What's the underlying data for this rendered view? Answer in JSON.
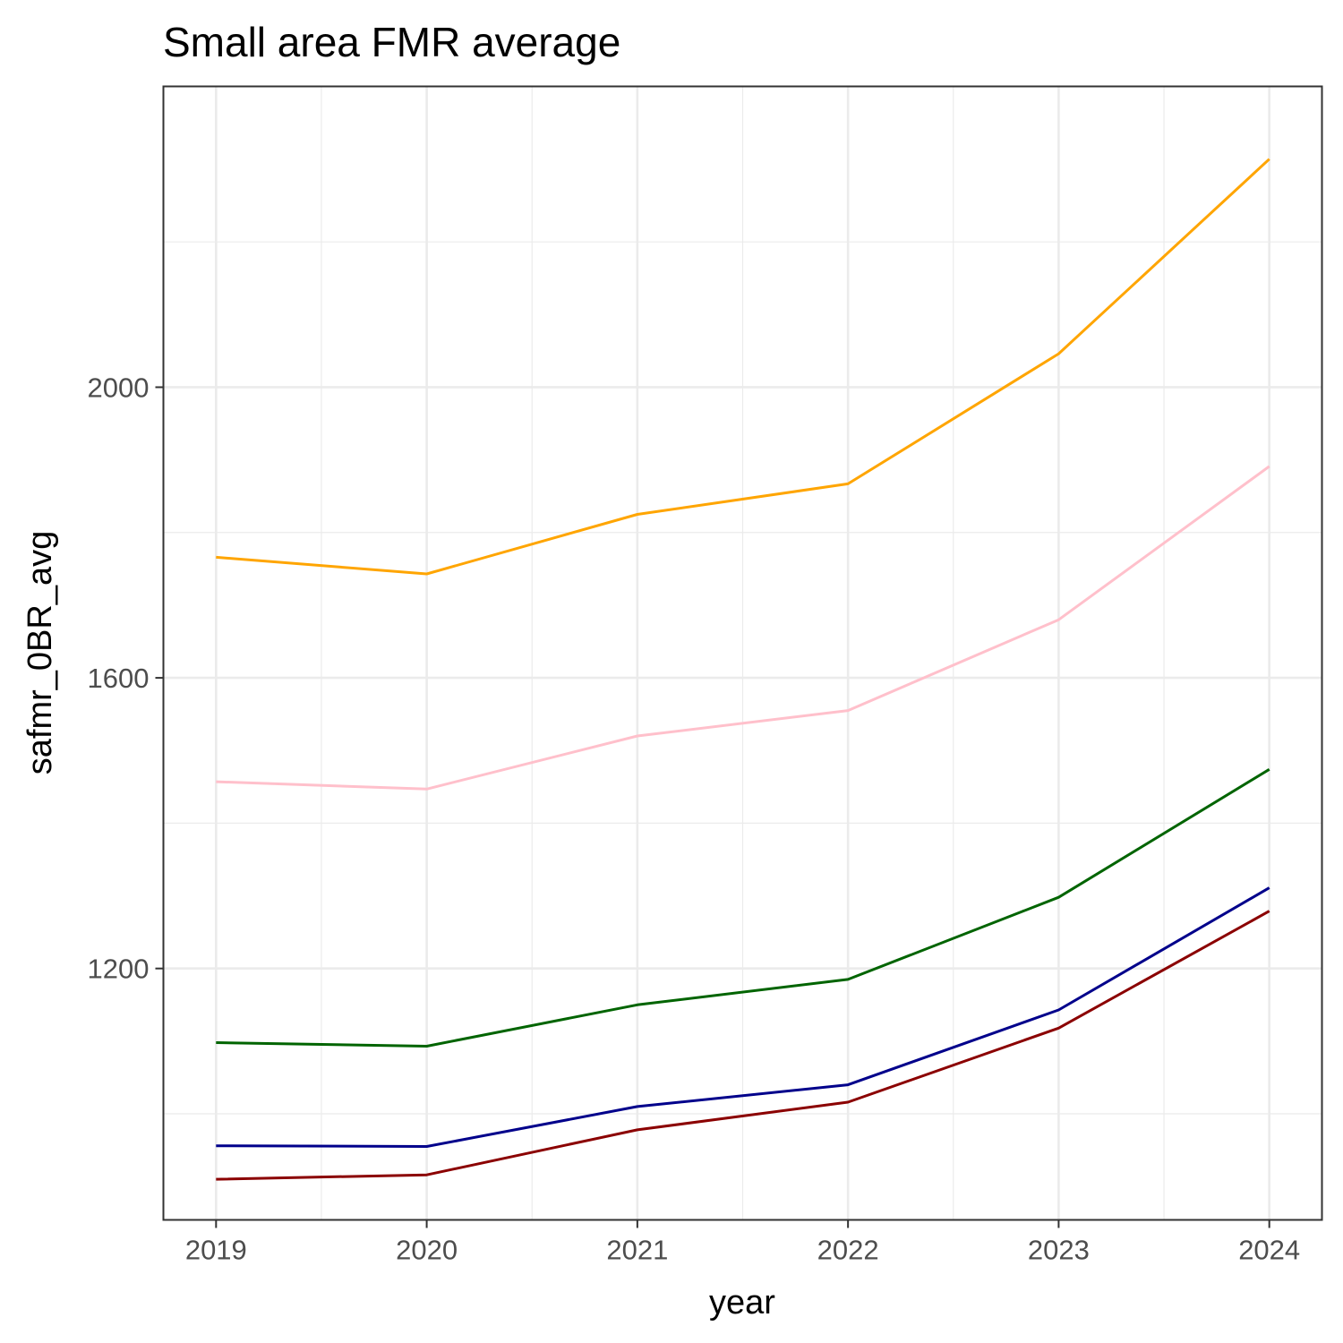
{
  "chart_data": {
    "type": "line",
    "title": "Small area FMR average",
    "xlabel": "year",
    "ylabel": "safmr_0BR_avg",
    "x": [
      2019,
      2020,
      2021,
      2022,
      2023,
      2024
    ],
    "xlim": [
      2018.75,
      2024.25
    ],
    "ylim": [
      854,
      2414
    ],
    "y_ticks": [
      1200,
      1600,
      2000
    ],
    "grid": true,
    "legend": "none",
    "series": [
      {
        "color": "#FFA500",
        "values": [
          1766,
          1743,
          1825,
          1867,
          2046,
          2314
        ]
      },
      {
        "color": "#FFC0CB",
        "values": [
          1457,
          1447,
          1520,
          1555,
          1680,
          1891
        ]
      },
      {
        "color": "#006400",
        "values": [
          1098,
          1093,
          1150,
          1185,
          1298,
          1474
        ]
      },
      {
        "color": "#00008B",
        "values": [
          956,
          955,
          1010,
          1040,
          1143,
          1311
        ]
      },
      {
        "color": "#8B0000",
        "values": [
          910,
          916,
          978,
          1016,
          1118,
          1279
        ]
      }
    ]
  }
}
